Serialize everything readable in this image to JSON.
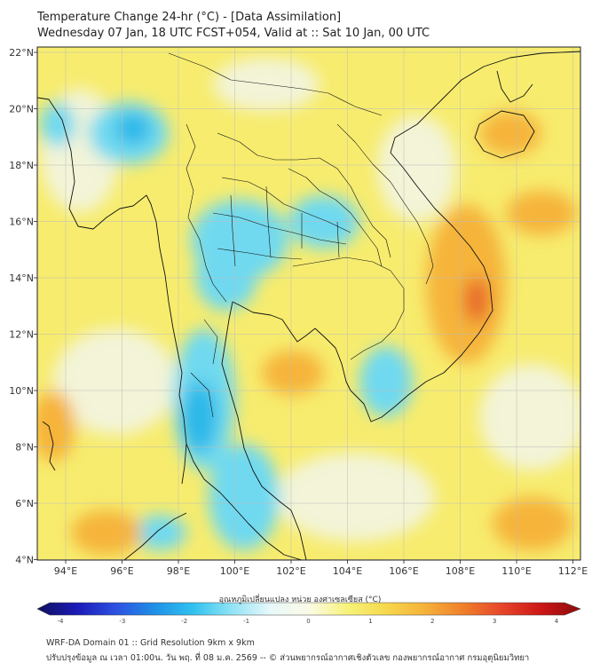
{
  "header": {
    "title_line1": "Temperature Change 24-hr (°C) - [Data Assimilation]",
    "title_line2": "Wednesday 07 Jan, 18 UTC FCST+054, Valid at :: Sat 10 Jan, 00 UTC"
  },
  "map": {
    "lon_ticks": [
      "94°E",
      "96°E",
      "98°E",
      "100°E",
      "102°E",
      "104°E",
      "106°E",
      "108°E",
      "110°E",
      "112°E"
    ],
    "lat_ticks": [
      "22°N",
      "20°N",
      "18°N",
      "16°N",
      "14°N",
      "12°N",
      "10°N",
      "8°N",
      "6°N",
      "4°N"
    ],
    "colors": {
      "background_yellow": "#f7ec6e",
      "warm_orange": "#f6b43a",
      "hot_core": "#e8692a",
      "cool_cyan": "#6fd9f0",
      "cool_blue": "#29b8e8",
      "neutral": "#f3f4d8",
      "coastline": "#111111",
      "grid": "#bbbbbb"
    }
  },
  "colorbar": {
    "label": "อุณหภูมิเปลี่ยนแปลง หน่วย องศาเซลเซียส (°C)",
    "ticks": [
      "-4",
      "-3",
      "-2",
      "-1",
      "0",
      "1",
      "2",
      "3",
      "4"
    ],
    "colors": [
      "#10105e",
      "#1a1ab5",
      "#2d4fe0",
      "#1f8fe6",
      "#2fc1ef",
      "#8fe3f5",
      "#e8f8fb",
      "#fbfbe6",
      "#f7f27a",
      "#f6d84c",
      "#f5b13a",
      "#f07e2b",
      "#e6442a",
      "#cc1616",
      "#8a0b0b"
    ]
  },
  "footer": {
    "line1": "WRF-DA Domain 01 :: Grid Resolution 9km x 9km",
    "line2": "ปรับปรุงข้อมูล ณ เวลา 01:00น. วัน พฤ. ที่ 08 ม.ค. 2569 -- © ส่วนพยากรณ์อากาศเชิงตัวเลข กองพยากรณ์อากาศ กรมอุตุนิยมวิทยา"
  }
}
